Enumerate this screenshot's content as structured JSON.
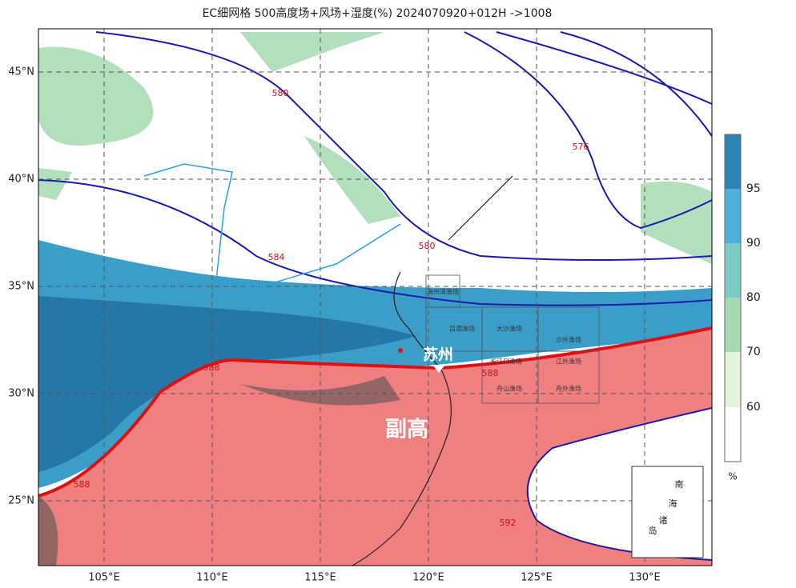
{
  "title": "EC细网格 500高度场+风场+湿度(%) 2024070920+012H ->1008",
  "lat_labels": [
    "45°N",
    "40°N",
    "35°N",
    "30°N",
    "25°N"
  ],
  "lon_labels": [
    "105°E",
    "110°E",
    "115°E",
    "120°E",
    "125°E",
    "130°E"
  ],
  "colorbar": {
    "labels": [
      "95",
      "90",
      "80",
      "70",
      "60"
    ],
    "unit": "%"
  },
  "contour_labels": [
    "580",
    "576",
    "584",
    "580",
    "588",
    "588",
    "588",
    "592"
  ],
  "places": {
    "city": "苏州",
    "high": "副高"
  },
  "fishing_grounds": [
    "海州湾渔场",
    "吕泗渔场",
    "大沙渔场",
    "沙外渔场",
    "长江口渔场",
    "江外渔场",
    "舟山渔场",
    "舟外渔场"
  ],
  "inset": [
    "南",
    "海",
    "诸",
    "岛"
  ]
}
